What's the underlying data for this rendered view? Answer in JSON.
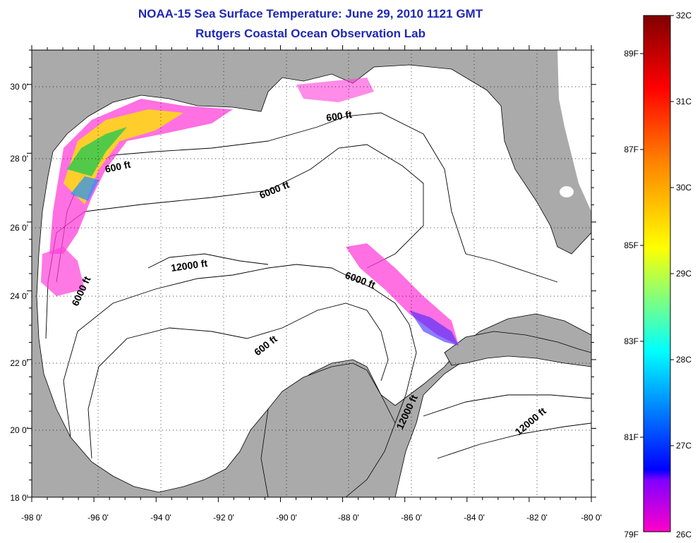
{
  "header": {
    "title": "NOAA-15 Sea Surface Temperature:  June 29, 2010 1121 GMT",
    "subtitle": "Rutgers Coastal Ocean Observation Lab"
  },
  "map": {
    "lon_range": [
      -98,
      -80
    ],
    "lat_range": [
      18,
      31
    ],
    "lon_ticks": [
      "-98 0'",
      "-96 0'",
      "-94 0'",
      "-92 0'",
      "-90 0'",
      "-88 0'",
      "-86 0'",
      "-84 0'",
      "-82 0'",
      "-80 0'"
    ],
    "lat_ticks": [
      "18 0'",
      "20 0'",
      "22 0'",
      "24 0'",
      "26 0'",
      "28 0'",
      "30 0'"
    ],
    "grid": "dotted",
    "land_color": "#aaaaaa",
    "ocean_color": "#ffffff",
    "contour_labels": [
      {
        "id": "c600a",
        "text": "600 ft"
      },
      {
        "id": "c600b",
        "text": "600 ft"
      },
      {
        "id": "c600c",
        "text": "600 ft"
      },
      {
        "id": "c6000a",
        "text": "6000 ft"
      },
      {
        "id": "c6000b",
        "text": "6000 ft"
      },
      {
        "id": "c6000c",
        "text": "6000 ft"
      },
      {
        "id": "c12000a",
        "text": "12000 ft"
      },
      {
        "id": "c12000b",
        "text": "12000 ft"
      },
      {
        "id": "c12000c",
        "text": "12000 ft"
      }
    ]
  },
  "colorbar": {
    "celsius_labels": [
      "32C",
      "31C",
      "30C",
      "29C",
      "28C",
      "27C",
      "26C"
    ],
    "fahrenheit_labels": [
      "89F",
      "87F",
      "85F",
      "83F",
      "81F",
      "79F"
    ],
    "range_c": [
      26,
      32
    ],
    "stops": [
      "#ff00c8",
      "#8000ff",
      "#0000ff",
      "#00ffff",
      "#ffff00",
      "#ff8000",
      "#ff0000",
      "#800000"
    ]
  }
}
